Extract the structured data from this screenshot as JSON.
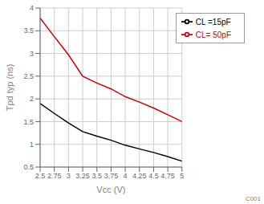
{
  "chart_data": {
    "type": "line",
    "title": "",
    "xlabel": "Vcc (V)",
    "ylabel": "Tpd typ (ns)",
    "xlim": [
      2.5,
      5.0
    ],
    "ylim": [
      0.5,
      4.0
    ],
    "xticks": [
      2.5,
      2.75,
      3,
      3.25,
      3.5,
      3.75,
      4,
      4.25,
      4.5,
      4.75,
      5
    ],
    "yticks": [
      0.5,
      1,
      1.5,
      2,
      2.5,
      3,
      3.5,
      4
    ],
    "grid": true,
    "legend": "upper right",
    "annotations": [
      "C001"
    ],
    "series": [
      {
        "name": "CL =15pF",
        "color": "#000000",
        "x": [
          2.5,
          2.75,
          3.0,
          3.25,
          3.5,
          3.75,
          4.0,
          4.25,
          4.5,
          4.75,
          5.0
        ],
        "values": [
          1.9,
          1.68,
          1.47,
          1.28,
          1.18,
          1.09,
          0.98,
          0.9,
          0.82,
          0.73,
          0.63
        ]
      },
      {
        "name": "CL= 50pF",
        "color": "#cc0000",
        "x": [
          2.5,
          2.75,
          3.0,
          3.25,
          3.5,
          3.75,
          4.0,
          4.25,
          4.5,
          4.75,
          5.0
        ],
        "values": [
          3.78,
          3.37,
          2.97,
          2.5,
          2.35,
          2.22,
          2.05,
          1.93,
          1.8,
          1.65,
          1.5
        ]
      }
    ]
  }
}
